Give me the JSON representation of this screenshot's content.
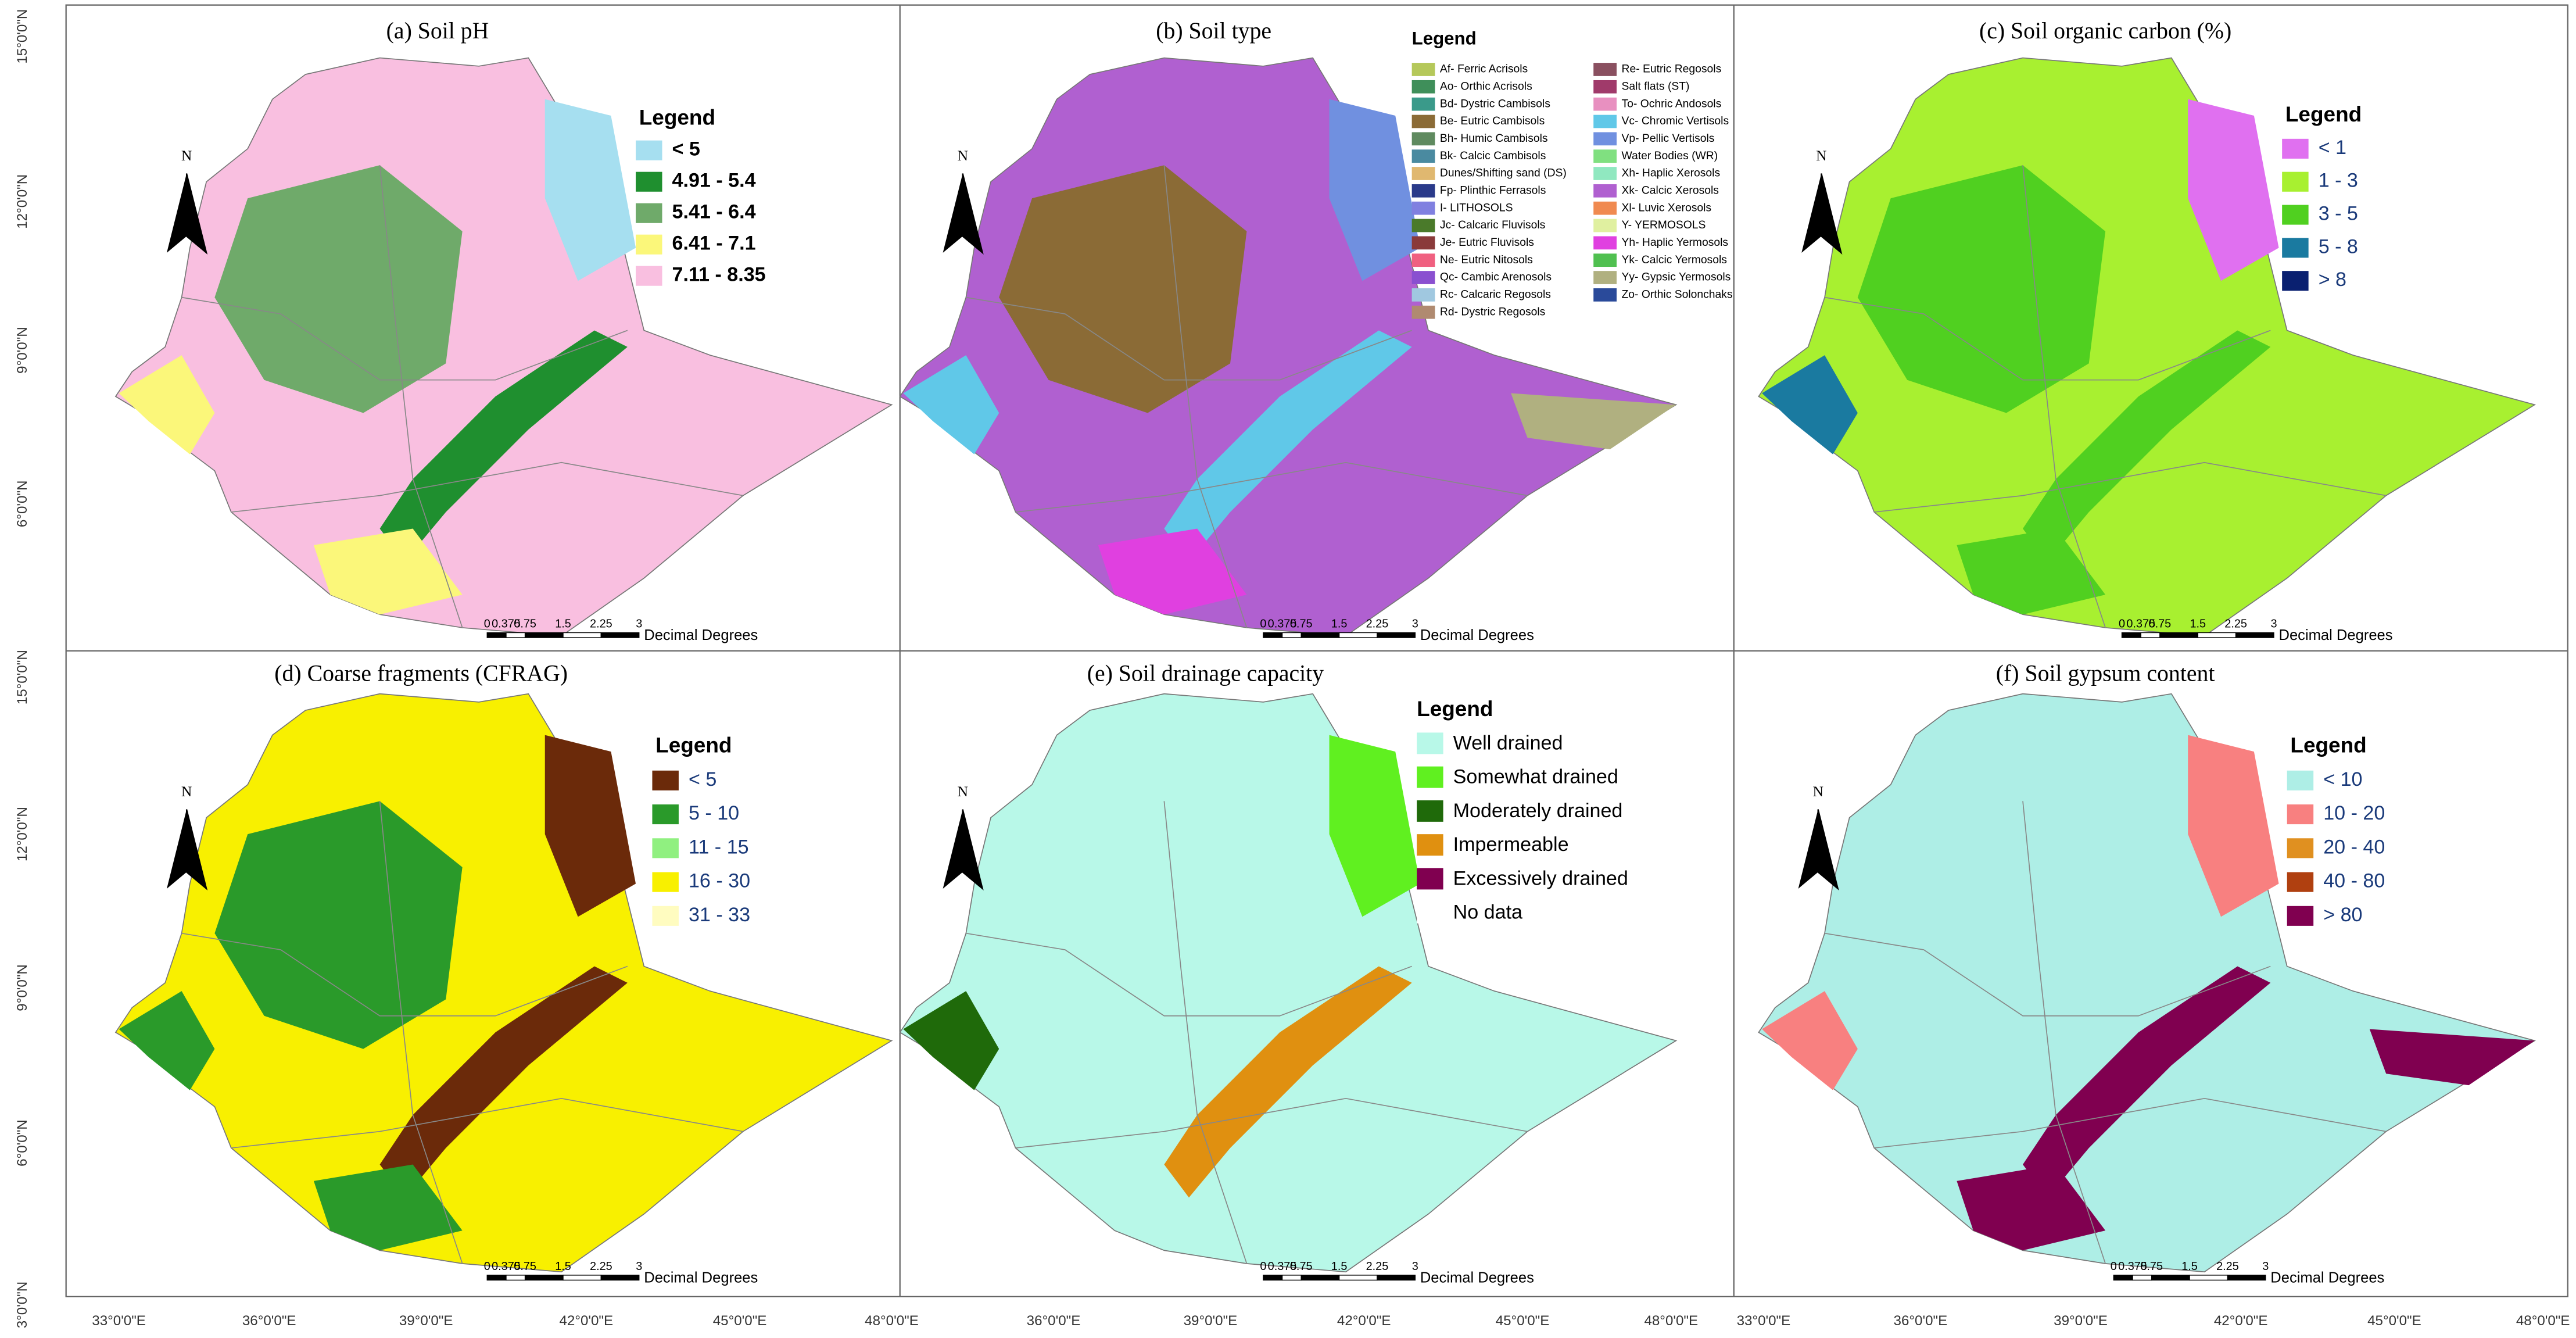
{
  "panels": [
    {
      "title": "(a) Soil pH",
      "legend": {
        "title": "Legend",
        "items": [
          {
            "label": "< 5",
            "color": "#a6dff0"
          },
          {
            "label": "4.91 - 5.4",
            "color": "#1f8f2f"
          },
          {
            "label": "5.41 - 6.4",
            "color": "#6faa6a"
          },
          {
            "label": "6.41 - 7.1",
            "color": "#fbf77a"
          },
          {
            "label": "7.11 - 8.35",
            "color": "#f9bfe0"
          }
        ]
      }
    },
    {
      "title": "(b) Soil type",
      "legend": {
        "title": "Legend",
        "items": [
          {
            "label": "Af- Ferric Acrisols",
            "color": "#b5c85a"
          },
          {
            "label": "Ao- Orthic Acrisols",
            "color": "#3f8f5a"
          },
          {
            "label": "Bd- Dystric Cambisols",
            "color": "#3a9a8a"
          },
          {
            "label": "Be- Eutric Cambisols",
            "color": "#8b6b36"
          },
          {
            "label": "Bh- Humic Cambisols",
            "color": "#5f8a5f"
          },
          {
            "label": "Bk- Calcic Cambisols",
            "color": "#4a8aa0"
          },
          {
            "label": "Dunes/Shifting sand (DS)",
            "color": "#e0b870"
          },
          {
            "label": "Fp- Plinthic Ferrasols",
            "color": "#2a3a8a"
          },
          {
            "label": "I- LITHOSOLS",
            "color": "#8080e0"
          },
          {
            "label": "Jc- Calcaric Fluvisols",
            "color": "#4a7a2a"
          },
          {
            "label": "Je- Eutric Fluvisols",
            "color": "#8a3a3a"
          },
          {
            "label": "Ne- Eutric Nitosols",
            "color": "#f06080"
          },
          {
            "label": "Qc- Cambic Arenosols",
            "color": "#8a50d0"
          },
          {
            "label": "Rc- Calcaric Regosols",
            "color": "#a0c8e0"
          },
          {
            "label": "Rd- Dystric Regosols",
            "color": "#b08a70"
          },
          {
            "label": "Re- Eutric Regosols",
            "color": "#8a5060"
          },
          {
            "label": "Salt flats (ST)",
            "color": "#a03a6a"
          },
          {
            "label": "To- Ochric Andosols",
            "color": "#e890c0"
          },
          {
            "label": "Vc- Chromic Vertisols",
            "color": "#60c8e8"
          },
          {
            "label": "Vp- Pellic Vertisols",
            "color": "#7090e0"
          },
          {
            "label": "Water Bodies (WR)",
            "color": "#80e080"
          },
          {
            "label": "Xh- Haplic Xerosols",
            "color": "#90e8c0"
          },
          {
            "label": "Xk- Calcic Xerosols",
            "color": "#b060d0"
          },
          {
            "label": "Xl- Luvic Xerosols",
            "color": "#f08a50"
          },
          {
            "label": "Y- YERMOSOLS",
            "color": "#e0f0a0"
          },
          {
            "label": "Yh- Haplic Yermosols",
            "color": "#e040e0"
          },
          {
            "label": "Yk- Calcic Yermosols",
            "color": "#50c050"
          },
          {
            "label": "Yy- Gypsic Yermosols",
            "color": "#b0b080"
          },
          {
            "label": "Zo- Orthic Solonchaks",
            "color": "#2a4a9a"
          }
        ]
      }
    },
    {
      "title": "(c) Soil organic carbon (%)",
      "legend": {
        "title": "Legend",
        "items": [
          {
            "label": "< 1",
            "color": "#e070f0"
          },
          {
            "label": "1 - 3",
            "color": "#a8f030"
          },
          {
            "label": "3 - 5",
            "color": "#50d020"
          },
          {
            "label": "5 - 8",
            "color": "#1a7aa0"
          },
          {
            "label": "> 8",
            "color": "#0a2070"
          }
        ]
      }
    },
    {
      "title": "(d) Coarse fragments (CFRAG)",
      "legend": {
        "title": "Legend",
        "items": [
          {
            "label": "< 5",
            "color": "#6b2a0a"
          },
          {
            "label": "5 - 10",
            "color": "#2a9a2a"
          },
          {
            "label": "11 - 15",
            "color": "#90f080"
          },
          {
            "label": "16 - 30",
            "color": "#f8f000"
          },
          {
            "label": "31 - 33",
            "color": "#fffcc0"
          }
        ]
      }
    },
    {
      "title": "(e) Soil drainage capacity",
      "legend": {
        "title": "Legend",
        "items": [
          {
            "label": "Well drained",
            "color": "#b8f8e8"
          },
          {
            "label": "Somewhat drained",
            "color": "#60f020"
          },
          {
            "label": "Moderately drained",
            "color": "#1f6a0a"
          },
          {
            "label": "Impermeable",
            "color": "#e09010"
          },
          {
            "label": "Excessively drained",
            "color": "#800050"
          },
          {
            "label": "No data",
            "color": "#ffffff"
          }
        ]
      }
    },
    {
      "title": "(f) Soil gypsum content",
      "legend": {
        "title": "Legend",
        "items": [
          {
            "label": "< 10",
            "color": "#aeeee6"
          },
          {
            "label": "10 - 20",
            "color": "#f88080"
          },
          {
            "label": "20 - 40",
            "color": "#e09020"
          },
          {
            "label": "40 - 80",
            "color": "#b04010"
          },
          {
            "label": "> 80",
            "color": "#800050"
          }
        ]
      }
    }
  ],
  "north": "N",
  "scale_bar": {
    "labels": [
      "0",
      "0.375",
      "0.75",
      "1.5",
      "2.25",
      "3"
    ],
    "unit": "Decimal Degrees"
  },
  "latitude_labels": [
    "15°0'0\"N",
    "12°0'0\"N",
    "9°0'0\"N",
    "6°0'0\"N",
    "3°0'0\"N"
  ],
  "longitude_labels": [
    "33°0'0\"E",
    "36°0'0\"E",
    "39°0'0\"E",
    "42°0'0\"E",
    "45°0'0\"E",
    "48°0'0\"E"
  ]
}
